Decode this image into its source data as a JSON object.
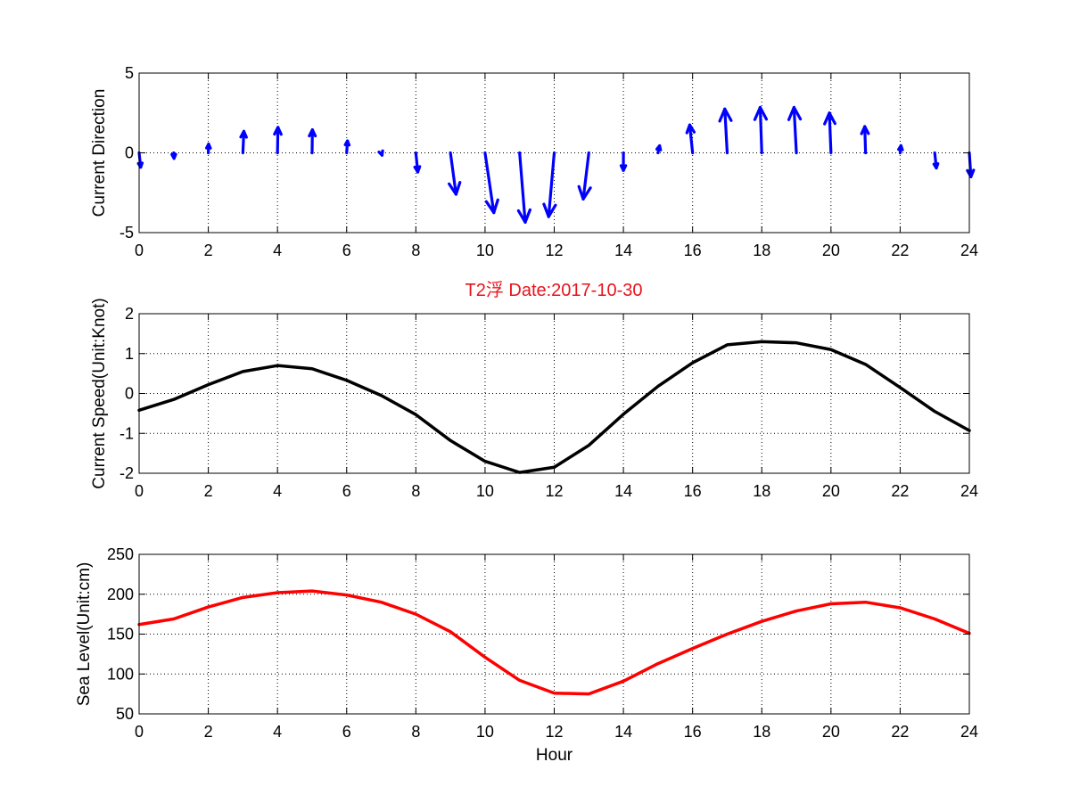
{
  "figure": {
    "title": "T2浮    Date:2017-10-30",
    "title_color": "#e8141c"
  },
  "chart_data": [
    {
      "type": "quiver",
      "ylabel": "Current Direction",
      "xlabel": "",
      "xlim": [
        0,
        24
      ],
      "ylim": [
        -5,
        5
      ],
      "xticks": [
        0,
        2,
        4,
        6,
        8,
        10,
        12,
        14,
        16,
        18,
        20,
        22,
        24
      ],
      "yticks": [
        -5,
        0,
        5
      ],
      "grid": true,
      "color": "#0000ff",
      "x": [
        0,
        1,
        2,
        3,
        4,
        5,
        6,
        7,
        8,
        9,
        10,
        11,
        12,
        13,
        14,
        15,
        16,
        17,
        18,
        19,
        20,
        21,
        22,
        23,
        24
      ],
      "u": [
        0.1,
        0.02,
        0.02,
        0.06,
        0.03,
        0.02,
        0.05,
        0.05,
        0.12,
        0.35,
        0.55,
        0.35,
        -0.35,
        -0.35,
        0.0,
        0.1,
        -0.18,
        -0.15,
        -0.1,
        -0.15,
        -0.1,
        -0.05,
        0.05,
        0.1,
        0.1
      ],
      "v": [
        -0.9,
        -0.35,
        0.55,
        1.35,
        1.6,
        1.45,
        0.75,
        -0.15,
        -1.2,
        -2.6,
        -3.75,
        -4.35,
        -4.0,
        -2.9,
        -1.1,
        0.45,
        1.75,
        2.75,
        2.85,
        2.85,
        2.5,
        1.65,
        0.45,
        -0.95,
        -1.5
      ]
    },
    {
      "type": "line",
      "ylabel": "Current Speed(Unit:Knot)",
      "xlabel": "",
      "xlim": [
        0,
        24
      ],
      "ylim": [
        -2,
        2
      ],
      "xticks": [
        0,
        2,
        4,
        6,
        8,
        10,
        12,
        14,
        16,
        18,
        20,
        22,
        24
      ],
      "yticks": [
        -2,
        -1,
        0,
        1,
        2
      ],
      "grid": true,
      "series": [
        {
          "color": "#000000",
          "x": [
            0,
            1,
            2,
            3,
            4,
            5,
            6,
            7,
            8,
            9,
            10,
            11,
            12,
            13,
            14,
            15,
            16,
            17,
            18,
            19,
            20,
            21,
            22,
            23,
            24
          ],
          "values": [
            -0.42,
            -0.15,
            0.22,
            0.55,
            0.7,
            0.62,
            0.33,
            -0.05,
            -0.53,
            -1.18,
            -1.7,
            -1.98,
            -1.85,
            -1.3,
            -0.52,
            0.18,
            0.77,
            1.22,
            1.3,
            1.27,
            1.1,
            0.73,
            0.15,
            -0.45,
            -0.93
          ]
        }
      ]
    },
    {
      "type": "line",
      "ylabel": "Sea Level(Unit:cm)",
      "xlabel": "Hour",
      "xlim": [
        0,
        24
      ],
      "ylim": [
        50,
        250
      ],
      "xticks": [
        0,
        2,
        4,
        6,
        8,
        10,
        12,
        14,
        16,
        18,
        20,
        22,
        24
      ],
      "yticks": [
        50,
        100,
        150,
        200,
        250
      ],
      "grid": true,
      "series": [
        {
          "color": "#ff0000",
          "x": [
            0,
            1,
            2,
            3,
            4,
            5,
            6,
            7,
            8,
            9,
            10,
            11,
            12,
            13,
            14,
            15,
            16,
            17,
            18,
            19,
            20,
            21,
            22,
            23,
            24
          ],
          "values": [
            162,
            169,
            184,
            196,
            202,
            204,
            199,
            190,
            175,
            153,
            121,
            92,
            76,
            75,
            91,
            113,
            132,
            150,
            166,
            179,
            188,
            190,
            183,
            169,
            151
          ]
        }
      ]
    }
  ]
}
